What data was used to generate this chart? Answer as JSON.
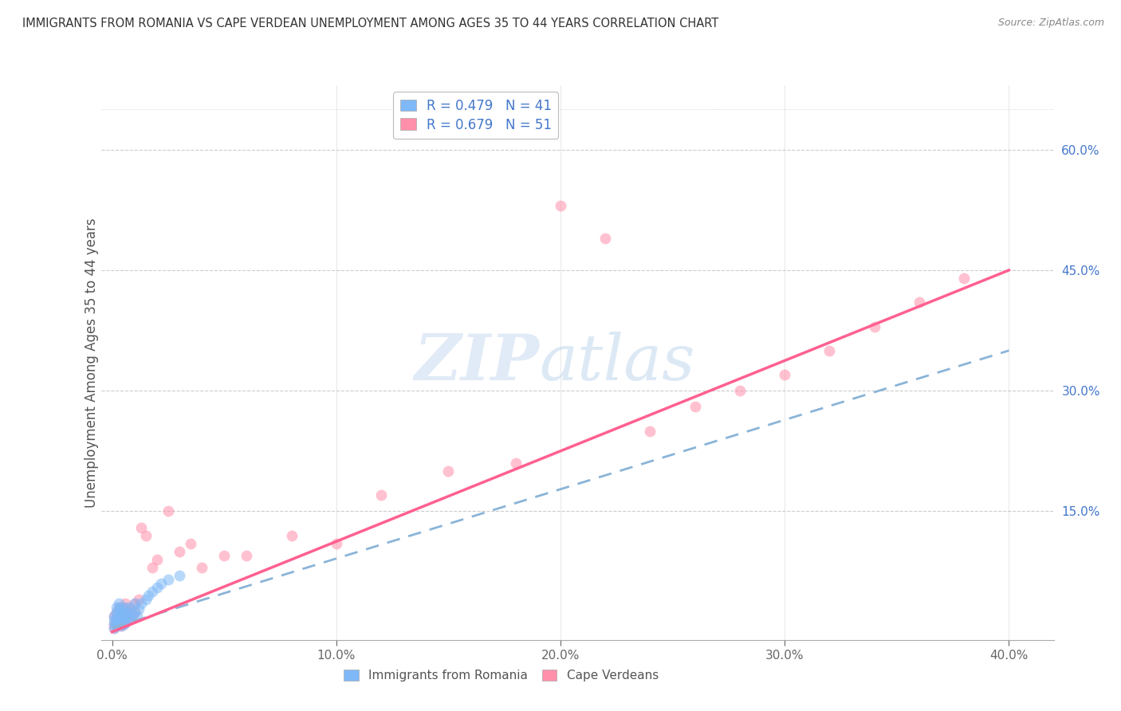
{
  "title": "IMMIGRANTS FROM ROMANIA VS CAPE VERDEAN UNEMPLOYMENT AMONG AGES 35 TO 44 YEARS CORRELATION CHART",
  "source": "Source: ZipAtlas.com",
  "ylabel": "Unemployment Among Ages 35 to 44 years",
  "xlabel_ticks": [
    "0.0%",
    "10.0%",
    "20.0%",
    "30.0%",
    "40.0%"
  ],
  "xlabel_vals": [
    0.0,
    0.1,
    0.2,
    0.3,
    0.4
  ],
  "ylabel_ticks_right": [
    "60.0%",
    "45.0%",
    "30.0%",
    "15.0%"
  ],
  "ylabel_vals_right": [
    0.6,
    0.45,
    0.3,
    0.15
  ],
  "xlim": [
    -0.005,
    0.42
  ],
  "ylim": [
    -0.01,
    0.68
  ],
  "romania_R": 0.479,
  "romania_N": 41,
  "capeverde_R": 0.679,
  "capeverde_N": 51,
  "romania_color": "#7EB8F7",
  "capeverde_color": "#FF8FAB",
  "romania_line_color": "#8AB4D8",
  "capeverde_line_color": "#FF6090",
  "watermark_zip": "ZIP",
  "watermark_atlas": "atlas",
  "legend_label_romania": "Immigrants from Romania",
  "legend_label_capeverde": "Cape Verdeans",
  "romania_x": [
    0.001,
    0.001,
    0.001,
    0.001,
    0.002,
    0.002,
    0.002,
    0.002,
    0.002,
    0.003,
    0.003,
    0.003,
    0.003,
    0.003,
    0.004,
    0.004,
    0.004,
    0.004,
    0.005,
    0.005,
    0.005,
    0.006,
    0.006,
    0.006,
    0.007,
    0.007,
    0.008,
    0.008,
    0.009,
    0.01,
    0.01,
    0.011,
    0.012,
    0.013,
    0.015,
    0.016,
    0.018,
    0.02,
    0.022,
    0.025,
    0.03
  ],
  "romania_y": [
    0.005,
    0.01,
    0.015,
    0.02,
    0.008,
    0.012,
    0.018,
    0.025,
    0.03,
    0.01,
    0.015,
    0.022,
    0.028,
    0.035,
    0.008,
    0.015,
    0.022,
    0.03,
    0.01,
    0.018,
    0.025,
    0.012,
    0.02,
    0.03,
    0.015,
    0.025,
    0.018,
    0.03,
    0.022,
    0.025,
    0.035,
    0.02,
    0.028,
    0.035,
    0.04,
    0.045,
    0.05,
    0.055,
    0.06,
    0.065,
    0.07
  ],
  "capeverde_x": [
    0.001,
    0.001,
    0.001,
    0.002,
    0.002,
    0.002,
    0.003,
    0.003,
    0.003,
    0.004,
    0.004,
    0.004,
    0.005,
    0.005,
    0.005,
    0.006,
    0.006,
    0.006,
    0.007,
    0.007,
    0.008,
    0.008,
    0.009,
    0.01,
    0.01,
    0.012,
    0.013,
    0.015,
    0.018,
    0.02,
    0.025,
    0.03,
    0.035,
    0.04,
    0.05,
    0.06,
    0.08,
    0.1,
    0.12,
    0.15,
    0.18,
    0.2,
    0.22,
    0.24,
    0.26,
    0.28,
    0.3,
    0.32,
    0.34,
    0.36,
    0.38
  ],
  "capeverde_y": [
    0.005,
    0.01,
    0.02,
    0.008,
    0.015,
    0.025,
    0.01,
    0.018,
    0.03,
    0.008,
    0.015,
    0.025,
    0.01,
    0.02,
    0.03,
    0.012,
    0.022,
    0.035,
    0.015,
    0.025,
    0.018,
    0.028,
    0.02,
    0.025,
    0.035,
    0.04,
    0.13,
    0.12,
    0.08,
    0.09,
    0.15,
    0.1,
    0.11,
    0.08,
    0.095,
    0.095,
    0.12,
    0.11,
    0.17,
    0.2,
    0.21,
    0.53,
    0.49,
    0.25,
    0.28,
    0.3,
    0.32,
    0.35,
    0.38,
    0.41,
    0.44
  ],
  "ro_line_x": [
    0.0,
    0.4
  ],
  "ro_line_y": [
    0.005,
    0.35
  ],
  "cv_line_x": [
    0.0,
    0.4
  ],
  "cv_line_y": [
    0.0,
    0.45
  ]
}
